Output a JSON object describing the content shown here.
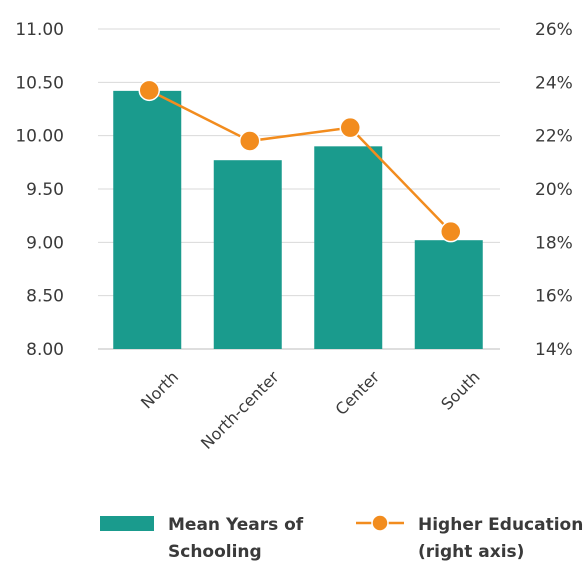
{
  "chart_data": {
    "type": "bar",
    "categories": [
      "North",
      "North-center",
      "Center",
      "South"
    ],
    "series": [
      {
        "name": "Mean Years of Schooling",
        "kind": "bar",
        "axis": "left",
        "color": "#1a9b8d",
        "values": [
          10.42,
          9.77,
          9.9,
          9.02
        ]
      },
      {
        "name": "Higher Education (right axis)",
        "kind": "line",
        "axis": "right",
        "color": "#f28c1e",
        "values": [
          23.7,
          21.8,
          22.3,
          18.4
        ]
      }
    ],
    "left_axis": {
      "ylim": [
        8.0,
        11.0
      ],
      "ticks": [
        "8.00",
        "8.50",
        "9.00",
        "9.50",
        "10.00",
        "10.50",
        "11.00"
      ]
    },
    "right_axis": {
      "ylim": [
        14,
        26
      ],
      "ticks": [
        "14%",
        "16%",
        "18%",
        "20%",
        "22%",
        "24%",
        "26%"
      ]
    },
    "grid": true,
    "legend": {
      "position": "bottom",
      "bar_label_lines": [
        "Mean Years of",
        "Schooling"
      ],
      "line_label_lines": [
        "Higher Education",
        "(right axis)"
      ]
    }
  }
}
